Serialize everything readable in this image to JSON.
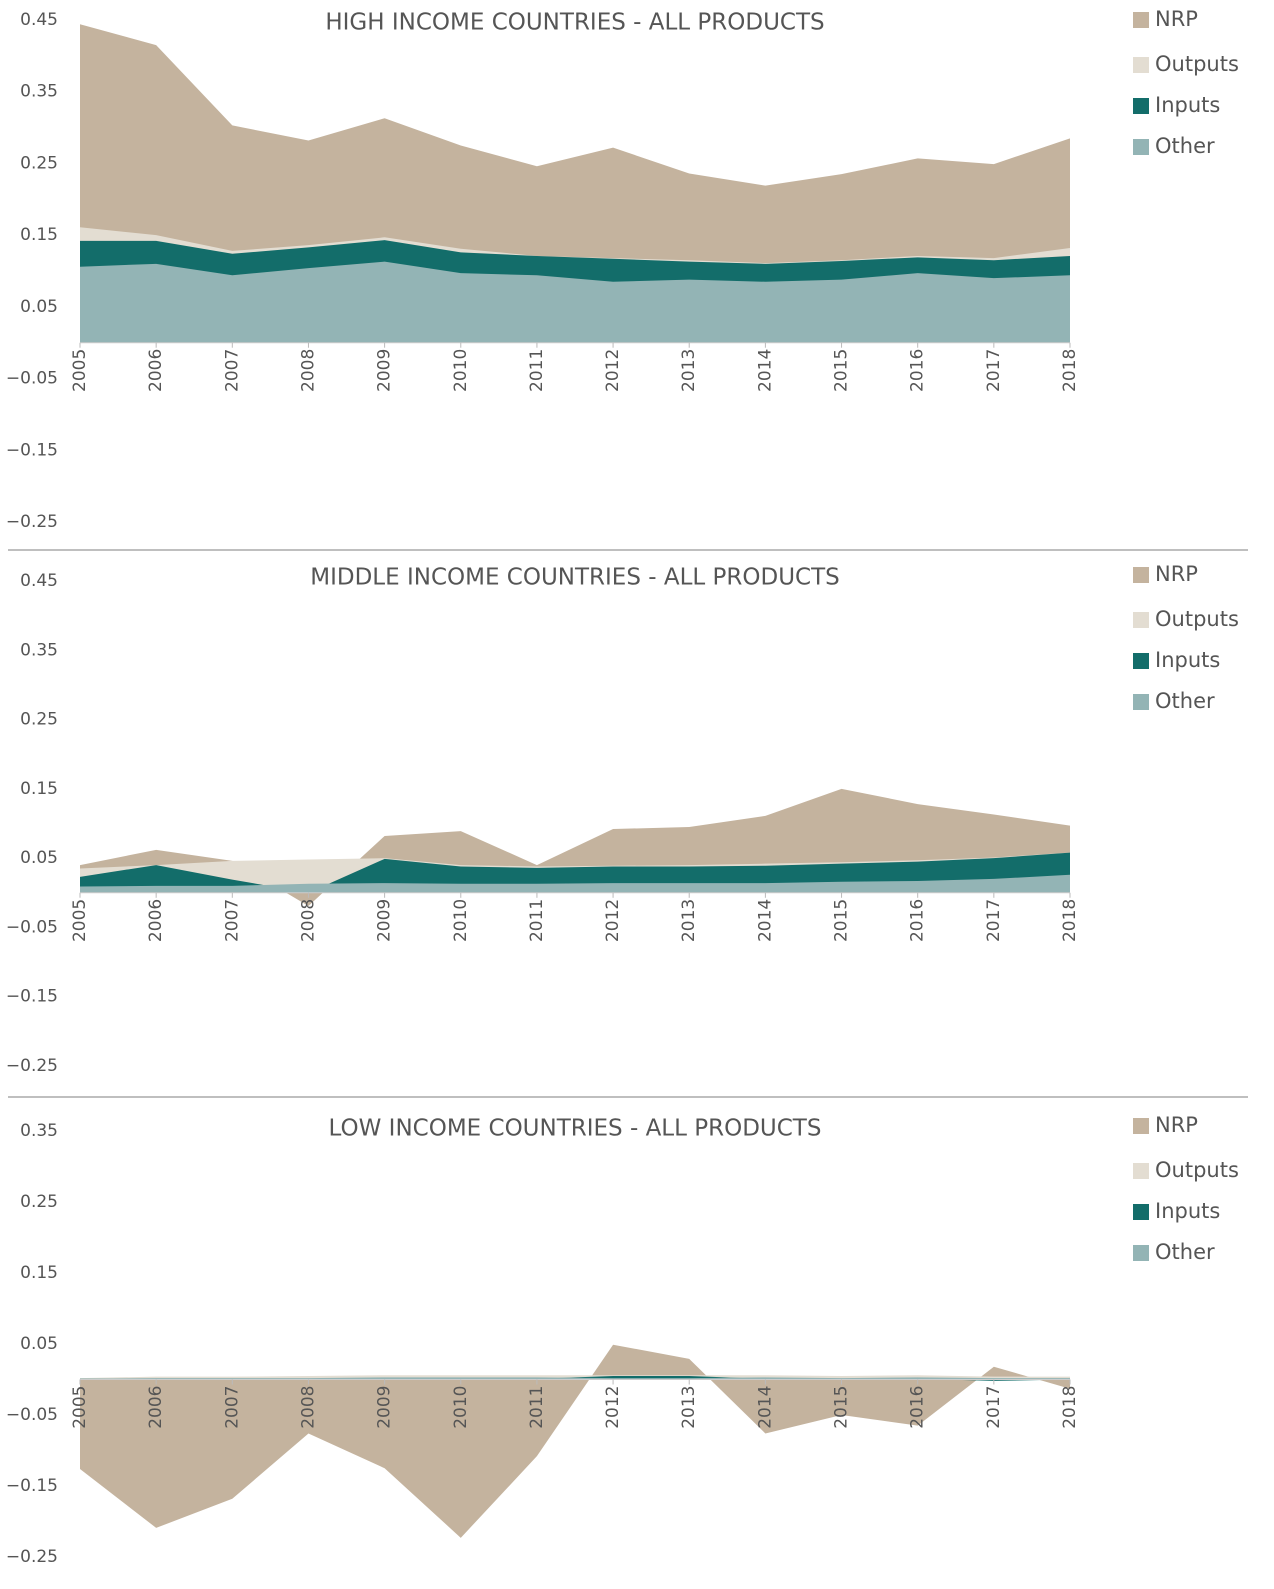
{
  "chart_data": [
    {
      "type": "area",
      "title": "HIGH INCOME COUNTRIES - ALL PRODUCTS",
      "categories": [
        "2005",
        "2006",
        "2007",
        "2008",
        "2009",
        "2010",
        "2011",
        "2012",
        "2013",
        "2014",
        "2015",
        "2016",
        "2017",
        "2018"
      ],
      "series": [
        {
          "name": "NRP",
          "color": "#c4b39e",
          "values": [
            0.444,
            0.415,
            0.303,
            0.282,
            0.313,
            0.275,
            0.246,
            0.272,
            0.236,
            0.219,
            0.235,
            0.257,
            0.249,
            0.285
          ]
        },
        {
          "name": "Outputs",
          "color": "#e3ddd2",
          "values": [
            0.161,
            0.15,
            0.128,
            0.136,
            0.147,
            0.131,
            0.121,
            0.118,
            0.115,
            0.111,
            0.115,
            0.121,
            0.118,
            0.132
          ]
        },
        {
          "name": "Inputs",
          "color": "#136d6a",
          "values": [
            0.142,
            0.142,
            0.124,
            0.133,
            0.143,
            0.126,
            0.121,
            0.117,
            0.113,
            0.11,
            0.114,
            0.119,
            0.115,
            0.121
          ]
        },
        {
          "name": "Other",
          "color": "#93b4b5",
          "values": [
            0.106,
            0.11,
            0.094,
            0.104,
            0.113,
            0.097,
            0.094,
            0.085,
            0.088,
            0.085,
            0.088,
            0.097,
            0.09,
            0.094
          ]
        }
      ],
      "ylim": [
        -0.25,
        0.45
      ],
      "yticks": [
        0.45,
        0.35,
        0.25,
        0.15,
        0.05,
        {
          "value": -0.05,
          "label": "−0.05"
        },
        {
          "value": -0.15,
          "label": "−0.15"
        },
        {
          "value": -0.25,
          "label": "−0.25"
        }
      ],
      "legend": "right"
    },
    {
      "type": "area",
      "title": "MIDDLE INCOME COUNTRIES - ALL PRODUCTS",
      "categories": [
        "2005",
        "2006",
        "2007",
        "2008",
        "2009",
        "2010",
        "2011",
        "2012",
        "2013",
        "2014",
        "2015",
        "2016",
        "2017",
        "2018"
      ],
      "series": [
        {
          "name": "NRP",
          "color": "#c4b39e",
          "values": [
            0.04,
            0.062,
            0.046,
            -0.019,
            0.082,
            0.089,
            0.04,
            0.092,
            0.095,
            0.111,
            0.15,
            0.128,
            0.113,
            0.097
          ]
        },
        {
          "name": "Outputs",
          "color": "#e3ddd2",
          "values": [
            0.035,
            0.04,
            0.046,
            0.048,
            0.05,
            0.04,
            0.038,
            0.039,
            0.04,
            0.042,
            0.044,
            0.047,
            0.051,
            0.058
          ]
        },
        {
          "name": "Inputs",
          "color": "#136d6a",
          "values": [
            0.023,
            0.04,
            0.019,
            0.0,
            0.049,
            0.038,
            0.036,
            0.038,
            0.038,
            0.039,
            0.042,
            0.045,
            0.05,
            0.058
          ]
        },
        {
          "name": "Other",
          "color": "#93b4b5",
          "values": [
            0.009,
            0.01,
            0.01,
            0.013,
            0.014,
            0.013,
            0.013,
            0.014,
            0.014,
            0.014,
            0.016,
            0.017,
            0.02,
            0.026
          ]
        }
      ],
      "ylim": [
        -0.25,
        0.45
      ],
      "yticks": [
        0.45,
        0.35,
        0.25,
        0.15,
        0.05,
        {
          "value": -0.05,
          "label": "−0.05"
        },
        {
          "value": -0.15,
          "label": "−0.15"
        },
        {
          "value": -0.25,
          "label": "−0.25"
        }
      ],
      "legend": "right"
    },
    {
      "type": "area",
      "title": "LOW INCOME COUNTRIES - ALL PRODUCTS",
      "categories": [
        "2005",
        "2006",
        "2007",
        "2008",
        "2009",
        "2010",
        "2011",
        "2012",
        "2013",
        "2014",
        "2015",
        "2016",
        "2017",
        "2018"
      ],
      "series": [
        {
          "name": "NRP",
          "color": "#c4b39e",
          "values": [
            -0.126,
            -0.209,
            -0.168,
            -0.076,
            -0.125,
            -0.223,
            -0.108,
            0.049,
            0.029,
            -0.076,
            -0.05,
            -0.065,
            0.018,
            -0.013
          ]
        },
        {
          "name": "Outputs",
          "color": "#e3ddd2",
          "values": [
            0.002,
            0.004,
            0.004,
            0.005,
            0.006,
            0.006,
            0.006,
            0.006,
            0.006,
            0.006,
            0.005,
            0.006,
            0.004,
            0.004
          ]
        },
        {
          "name": "Inputs",
          "color": "#136d6a",
          "values": [
            0.001,
            0.001,
            0.001,
            0.001,
            0.001,
            0.001,
            0.001,
            0.005,
            0.005,
            0.001,
            0.001,
            0.001,
            -0.002,
            0.0
          ]
        },
        {
          "name": "Other",
          "color": "#93b4b5",
          "values": [
            0.001,
            0.002,
            0.002,
            0.002,
            0.003,
            0.003,
            0.003,
            0.002,
            0.002,
            0.003,
            0.002,
            0.003,
            0.002,
            0.002
          ]
        }
      ],
      "ylim": [
        -0.25,
        0.35
      ],
      "yticks": [
        0.35,
        0.25,
        0.15,
        0.05,
        {
          "value": -0.05,
          "label": "−0.05"
        },
        {
          "value": -0.15,
          "label": "−0.15"
        },
        {
          "value": -0.25,
          "label": "−0.25"
        }
      ],
      "legend": "right"
    }
  ]
}
